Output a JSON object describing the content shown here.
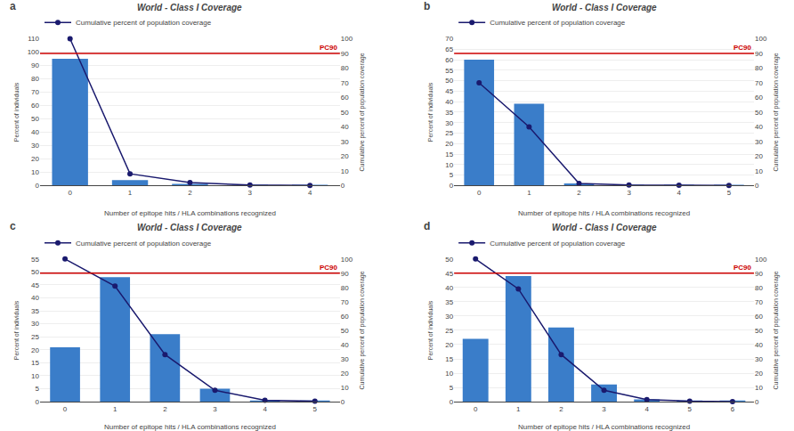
{
  "chart_data": [
    {
      "type": "bar",
      "panel_label": "a",
      "title": "World - Class I Coverage",
      "xlabel": "Number of epitope hits / HLA combinations recognized",
      "ylabel": "Percent of individuals",
      "y2label": "Cumulative percent of population coverage",
      "x": [
        0,
        1,
        2,
        3,
        4
      ],
      "xlim": [
        -0.5,
        4.5
      ],
      "xticks": [
        0,
        1,
        2,
        3,
        4
      ],
      "ylim": [
        0,
        110
      ],
      "yticks": [
        0,
        10,
        20,
        30,
        40,
        50,
        60,
        70,
        80,
        90,
        100,
        110
      ],
      "y2lim": [
        0,
        100
      ],
      "y2ticks": [
        0,
        10,
        20,
        30,
        40,
        50,
        60,
        70,
        80,
        90,
        100
      ],
      "grid": "y",
      "legend": "upper left",
      "series": [
        {
          "type": "bar",
          "color": "#3A7DC9",
          "values": [
            95,
            4,
            1,
            0.2,
            0.1
          ]
        },
        {
          "type": "line",
          "name": "Cumulative percent of population coverage",
          "color": "#1a1a6e",
          "marker": "o",
          "axis": "y2",
          "values": [
            100,
            8,
            2,
            0.3,
            0.1
          ]
        }
      ],
      "hlines": [
        {
          "y": 90,
          "axis": "y2",
          "label": "PC90",
          "color": "#cc0000"
        }
      ]
    },
    {
      "type": "bar",
      "panel_label": "b",
      "title": "World - Class I Coverage",
      "xlabel": "Number of epitope hits / HLA combinations recognized",
      "ylabel": "Percent of individuals",
      "y2label": "Cumulative percent of population coverage",
      "x": [
        0,
        1,
        2,
        3,
        4,
        5
      ],
      "xlim": [
        -0.5,
        5.5
      ],
      "xticks": [
        0,
        1,
        2,
        3,
        4,
        5
      ],
      "ylim": [
        0,
        70
      ],
      "yticks": [
        0,
        5,
        10,
        15,
        20,
        25,
        30,
        35,
        40,
        45,
        50,
        55,
        60,
        65,
        70
      ],
      "y2lim": [
        0,
        100
      ],
      "y2ticks": [
        0,
        10,
        20,
        30,
        40,
        50,
        60,
        70,
        80,
        90,
        100
      ],
      "grid": "y",
      "legend": "upper left",
      "series": [
        {
          "type": "bar",
          "color": "#3A7DC9",
          "values": [
            60,
            39,
            1,
            0.2,
            0.1,
            0.05
          ]
        },
        {
          "type": "line",
          "name": "Cumulative percent of population coverage",
          "color": "#1a1a6e",
          "marker": "o",
          "axis": "y2",
          "values": [
            70,
            40,
            1.5,
            0.3,
            0.15,
            0.05
          ]
        }
      ],
      "hlines": [
        {
          "y": 90,
          "axis": "y2",
          "label": "PC90",
          "color": "#cc0000"
        }
      ]
    },
    {
      "type": "bar",
      "panel_label": "c",
      "title": "World - Class I Coverage",
      "xlabel": "Number of epitope hits / HLA combinations recognized",
      "ylabel": "Percent of individuals",
      "y2label": "Cumulative percent of population coverage",
      "x": [
        0,
        1,
        2,
        3,
        4,
        5
      ],
      "xlim": [
        -0.5,
        5.5
      ],
      "xticks": [
        0,
        1,
        2,
        3,
        4,
        5
      ],
      "ylim": [
        0,
        55
      ],
      "yticks": [
        0,
        5,
        10,
        15,
        20,
        25,
        30,
        35,
        40,
        45,
        50,
        55
      ],
      "y2lim": [
        0,
        100
      ],
      "y2ticks": [
        0,
        10,
        20,
        30,
        40,
        50,
        60,
        70,
        80,
        90,
        100
      ],
      "grid": "y",
      "legend": "upper left",
      "series": [
        {
          "type": "bar",
          "color": "#3A7DC9",
          "values": [
            21,
            48,
            26,
            5,
            0.5,
            0.2
          ]
        },
        {
          "type": "line",
          "name": "Cumulative percent of population coverage",
          "color": "#1a1a6e",
          "marker": "o",
          "axis": "y2",
          "values": [
            100,
            81,
            33,
            8,
            1,
            0.3
          ]
        }
      ],
      "hlines": [
        {
          "y": 90,
          "axis": "y2",
          "label": "PC90",
          "color": "#cc0000"
        }
      ]
    },
    {
      "type": "bar",
      "panel_label": "d",
      "title": "World - Class I Coverage",
      "xlabel": "Number of epitope hits / HLA combinations recognized",
      "ylabel": "Percent of individuals",
      "y2label": "Cumulative percent of population coverage",
      "x": [
        0,
        1,
        2,
        3,
        4,
        5,
        6
      ],
      "xlim": [
        -0.5,
        6.5
      ],
      "xticks": [
        0,
        1,
        2,
        3,
        4,
        5,
        6
      ],
      "ylim": [
        0,
        50
      ],
      "yticks": [
        0,
        5,
        10,
        15,
        20,
        25,
        30,
        35,
        40,
        45,
        50
      ],
      "y2lim": [
        0,
        100
      ],
      "y2ticks": [
        0,
        10,
        20,
        30,
        40,
        50,
        60,
        70,
        80,
        90,
        100
      ],
      "grid": "y",
      "legend": "upper left",
      "series": [
        {
          "type": "bar",
          "color": "#3A7DC9",
          "values": [
            22,
            44,
            26,
            6,
            0.8,
            0.3,
            0.1
          ]
        },
        {
          "type": "line",
          "name": "Cumulative percent of population coverage",
          "color": "#1a1a6e",
          "marker": "o",
          "axis": "y2",
          "values": [
            100,
            79,
            33,
            8,
            1.5,
            0.4,
            0.1
          ]
        }
      ],
      "hlines": [
        {
          "y": 90,
          "axis": "y2",
          "label": "PC90",
          "color": "#cc0000"
        }
      ]
    }
  ]
}
